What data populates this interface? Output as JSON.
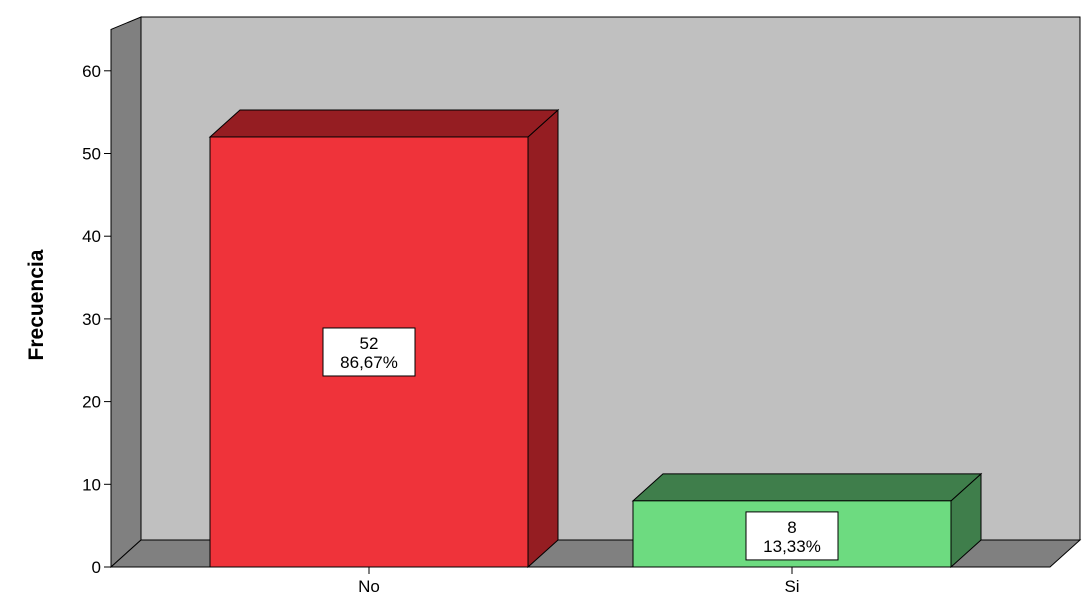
{
  "chart_data": {
    "type": "bar",
    "categories": [
      "No",
      "Si"
    ],
    "values": [
      52,
      8
    ],
    "value_labels": [
      "52",
      "8"
    ],
    "percent_labels": [
      "86,67%",
      "13,33%"
    ],
    "bar_colors": [
      "#ef333a",
      "#6ddb80"
    ],
    "bar_side_colors": [
      "#951d22",
      "#3f7e4b"
    ],
    "ylabel": "Frecuencia",
    "ylim": [
      0,
      65
    ],
    "yticks": [
      0,
      10,
      20,
      30,
      40,
      50,
      60
    ],
    "style": "3d",
    "wall_color": "#c0c0c0",
    "floor_color": "#808080",
    "grid": false,
    "legend": "none"
  }
}
